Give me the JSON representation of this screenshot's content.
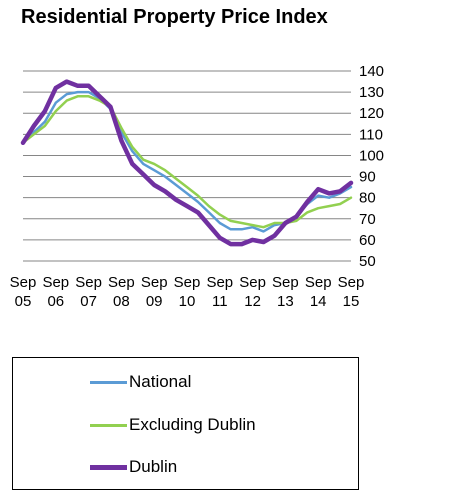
{
  "chart_data": {
    "type": "line",
    "title": "Residential Property Price Index",
    "xlabel": "",
    "ylabel": "",
    "x_axis": {
      "start": "2005-09",
      "end": "2015-09",
      "tick_labels": [
        {
          "date": "2005-09",
          "line1": "Sep",
          "line2": "05"
        },
        {
          "date": "2006-09",
          "line1": "Sep",
          "line2": "06"
        },
        {
          "date": "2007-09",
          "line1": "Sep",
          "line2": "07"
        },
        {
          "date": "2008-09",
          "line1": "Sep",
          "line2": "08"
        },
        {
          "date": "2009-09",
          "line1": "Sep",
          "line2": "09"
        },
        {
          "date": "2010-09",
          "line1": "Sep",
          "line2": "10"
        },
        {
          "date": "2011-09",
          "line1": "Sep",
          "line2": "11"
        },
        {
          "date": "2012-09",
          "line1": "Sep",
          "line2": "12"
        },
        {
          "date": "2013-09",
          "line1": "Sep",
          "line2": "13"
        },
        {
          "date": "2014-09",
          "line1": "Sep",
          "line2": "14"
        },
        {
          "date": "2015-09",
          "line1": "Sep",
          "line2": "15"
        }
      ]
    },
    "y_axis": {
      "position": "right",
      "ylim": [
        50,
        140
      ],
      "ticks": [
        140,
        130,
        120,
        110,
        100,
        90,
        80,
        70,
        60,
        50
      ],
      "grid": true
    },
    "legend": {
      "placement": "bottom"
    },
    "series": [
      {
        "name": "National",
        "color": "#5B9BD5",
        "points": [
          [
            "2005-09",
            106
          ],
          [
            "2006-01",
            111
          ],
          [
            "2006-05",
            116
          ],
          [
            "2006-09",
            125
          ],
          [
            "2007-01",
            129
          ],
          [
            "2007-05",
            130
          ],
          [
            "2007-09",
            130
          ],
          [
            "2008-01",
            127
          ],
          [
            "2008-05",
            122
          ],
          [
            "2008-09",
            111
          ],
          [
            "2009-01",
            102
          ],
          [
            "2009-05",
            96
          ],
          [
            "2009-09",
            93
          ],
          [
            "2010-01",
            90
          ],
          [
            "2010-05",
            86
          ],
          [
            "2010-09",
            82
          ],
          [
            "2011-01",
            78
          ],
          [
            "2011-05",
            73
          ],
          [
            "2011-09",
            68
          ],
          [
            "2012-01",
            65
          ],
          [
            "2012-05",
            65
          ],
          [
            "2012-09",
            66
          ],
          [
            "2013-01",
            64
          ],
          [
            "2013-05",
            67
          ],
          [
            "2013-09",
            68
          ],
          [
            "2014-01",
            71
          ],
          [
            "2014-05",
            77
          ],
          [
            "2014-09",
            81
          ],
          [
            "2015-01",
            80
          ],
          [
            "2015-05",
            82
          ],
          [
            "2015-09",
            85
          ]
        ]
      },
      {
        "name": "Excluding Dublin",
        "color": "#92D050",
        "points": [
          [
            "2005-09",
            106
          ],
          [
            "2006-01",
            110
          ],
          [
            "2006-05",
            114
          ],
          [
            "2006-09",
            121
          ],
          [
            "2007-01",
            126
          ],
          [
            "2007-05",
            128
          ],
          [
            "2007-09",
            128
          ],
          [
            "2008-01",
            126
          ],
          [
            "2008-05",
            123
          ],
          [
            "2008-09",
            113
          ],
          [
            "2009-01",
            104
          ],
          [
            "2009-05",
            98
          ],
          [
            "2009-09",
            96
          ],
          [
            "2010-01",
            93
          ],
          [
            "2010-05",
            89
          ],
          [
            "2010-09",
            85
          ],
          [
            "2011-01",
            81
          ],
          [
            "2011-05",
            76
          ],
          [
            "2011-09",
            72
          ],
          [
            "2012-01",
            69
          ],
          [
            "2012-05",
            68
          ],
          [
            "2012-09",
            67
          ],
          [
            "2013-01",
            66
          ],
          [
            "2013-05",
            68
          ],
          [
            "2013-09",
            68
          ],
          [
            "2014-01",
            69
          ],
          [
            "2014-05",
            73
          ],
          [
            "2014-09",
            75
          ],
          [
            "2015-01",
            76
          ],
          [
            "2015-05",
            77
          ],
          [
            "2015-09",
            80
          ]
        ]
      },
      {
        "name": "Dublin",
        "color": "#7030A0",
        "points": [
          [
            "2005-09",
            106
          ],
          [
            "2006-01",
            114
          ],
          [
            "2006-05",
            121
          ],
          [
            "2006-09",
            132
          ],
          [
            "2007-01",
            135
          ],
          [
            "2007-05",
            133
          ],
          [
            "2007-09",
            133
          ],
          [
            "2008-01",
            128
          ],
          [
            "2008-05",
            123
          ],
          [
            "2008-09",
            107
          ],
          [
            "2009-01",
            96
          ],
          [
            "2009-05",
            91
          ],
          [
            "2009-09",
            86
          ],
          [
            "2010-01",
            83
          ],
          [
            "2010-05",
            79
          ],
          [
            "2010-09",
            76
          ],
          [
            "2011-01",
            73
          ],
          [
            "2011-05",
            67
          ],
          [
            "2011-09",
            61
          ],
          [
            "2012-01",
            58
          ],
          [
            "2012-05",
            58
          ],
          [
            "2012-09",
            60
          ],
          [
            "2013-01",
            59
          ],
          [
            "2013-05",
            62
          ],
          [
            "2013-09",
            68
          ],
          [
            "2014-01",
            71
          ],
          [
            "2014-05",
            78
          ],
          [
            "2014-09",
            84
          ],
          [
            "2015-01",
            82
          ],
          [
            "2015-05",
            83
          ],
          [
            "2015-09",
            87
          ]
        ]
      }
    ]
  }
}
